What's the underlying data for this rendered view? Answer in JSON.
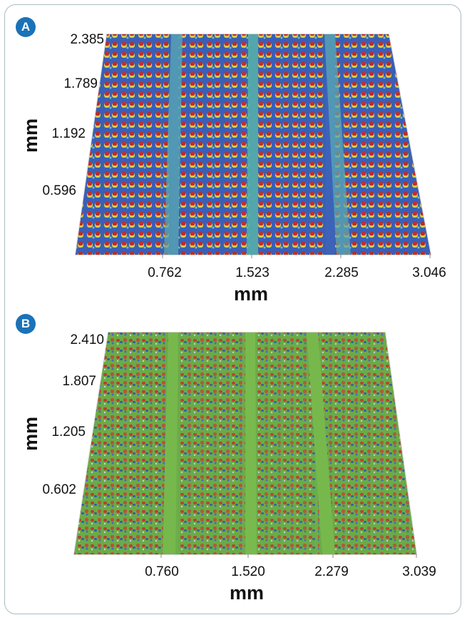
{
  "frame": {
    "border_color": "#a9bcc3"
  },
  "panel_a": {
    "badge": "A",
    "badge_color": "#1a72b8",
    "y_ticks": [
      "2.385",
      "1.789",
      "1.192",
      "0.596"
    ],
    "x_ticks": [
      "0.762",
      "1.523",
      "2.285",
      "3.046"
    ],
    "x_label": "mm",
    "y_label": "mm",
    "colors": {
      "base": "#3d63b8",
      "channel": "#58a7b0",
      "high": "#d42a1e",
      "mid": "#e9d34a"
    }
  },
  "panel_b": {
    "badge": "B",
    "badge_color": "#1a72b8",
    "y_ticks": [
      "2.410",
      "1.807",
      "1.205",
      "0.602"
    ],
    "x_ticks": [
      "0.760",
      "1.520",
      "2.279",
      "3.039"
    ],
    "x_label": "mm",
    "y_label": "mm",
    "colors": {
      "base": "#6cae49",
      "channel": "#79b94e",
      "high": "#c8302a",
      "low": "#2e4fae"
    }
  }
}
